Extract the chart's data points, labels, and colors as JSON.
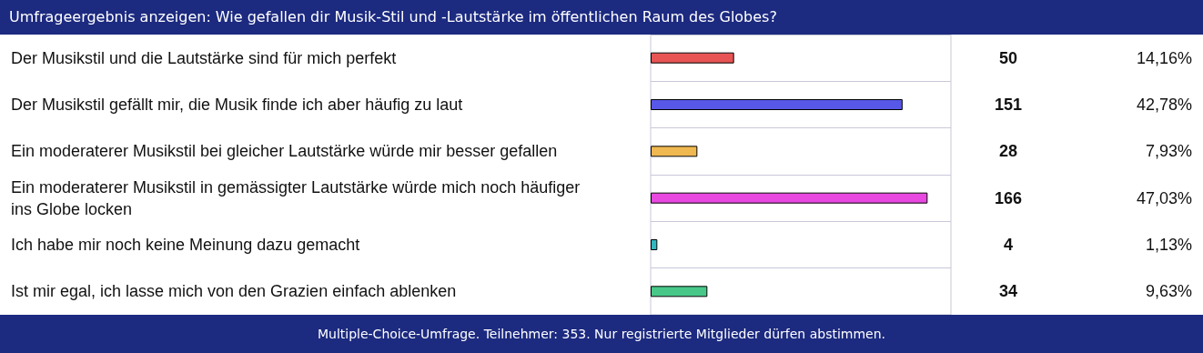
{
  "chart_data": {
    "type": "bar",
    "orientation": "horizontal",
    "title": "Umfrageergebnis anzeigen: Wie gefallen dir Musik-Stil und -Lautstärke im öffentlichen Raum des Globes?",
    "categories": [
      "Der Musikstil und die Lautstärke sind für mich perfekt",
      "Der Musikstil gefällt mir, die Musik finde ich aber häufig zu laut",
      "Ein moderaterer Musikstil bei gleicher Lautstärke würde mir besser gefallen",
      "Ein moderaterer Musikstil in gemässigter Lautstärke würde mich noch häufiger ins Globe locken",
      "Ich habe mir noch keine Meinung dazu gemacht",
      "Ist mir egal, ich lasse mich von den Grazien einfach ablenken"
    ],
    "values": [
      50,
      151,
      28,
      166,
      4,
      34
    ],
    "colors": [
      "#e85454",
      "#5858e8",
      "#f0b850",
      "#e848e0",
      "#30b8c0",
      "#48c888"
    ],
    "data_labels": true,
    "annotations": [
      "14,16%",
      "42,78%",
      "7,93%",
      "47,03%",
      "1,13%",
      "9,63%",
      "Multiple-Choice-Umfrage. Teilnehmer: 353. Nur registrierte Mitglieder dürfen abstimmen."
    ],
    "grid": "y"
  }
}
